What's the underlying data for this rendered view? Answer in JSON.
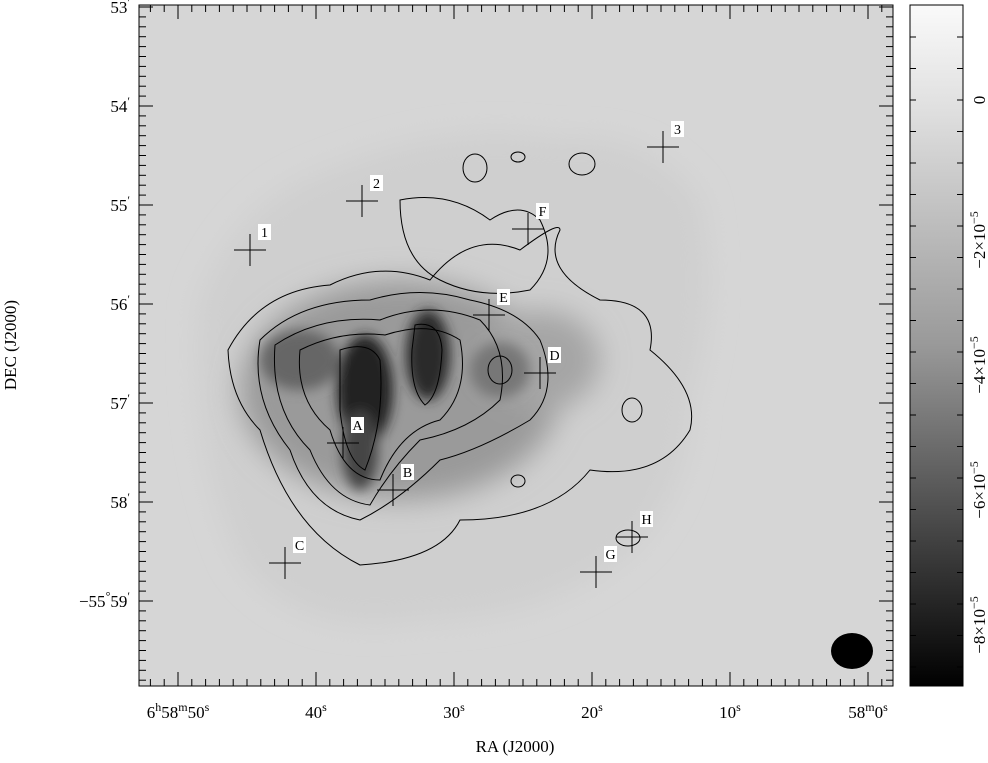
{
  "axes": {
    "x_title": "RA (J2000)",
    "y_title": "DEC (J2000)",
    "x_ticks": [
      [
        "6",
        "h",
        "58",
        "m",
        "50",
        "s"
      ],
      [
        "40",
        "s"
      ],
      [
        "30",
        "s"
      ],
      [
        "20",
        "s"
      ],
      [
        "10",
        "s"
      ],
      [
        "58",
        "m",
        "0",
        "s"
      ]
    ],
    "y_ticks": [
      [
        "53",
        "′"
      ],
      [
        "54",
        "′"
      ],
      [
        "55",
        "′"
      ],
      [
        "56",
        "′"
      ],
      [
        "57",
        "′"
      ],
      [
        "58",
        "′"
      ],
      [
        "−55",
        "°",
        "59",
        "′"
      ]
    ]
  },
  "colorbar": {
    "ticks": [
      [
        "0"
      ],
      [
        "−2×10",
        "−5"
      ],
      [
        "−4×10",
        "−5"
      ],
      [
        "−6×10",
        "−5"
      ],
      [
        "−8×10",
        "−5"
      ]
    ]
  },
  "sources": [
    "1",
    "2",
    "3",
    "A",
    "B",
    "C",
    "D",
    "E",
    "F",
    "G",
    "H"
  ]
}
